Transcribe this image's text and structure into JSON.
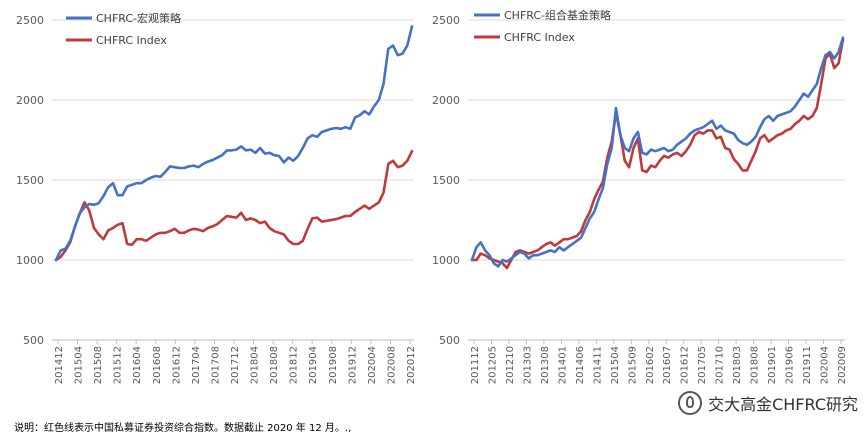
{
  "colors": {
    "blue": "#4472C4",
    "red": "#C0393B",
    "grid": "#D9D9D9",
    "axis": "#BFBFBF"
  },
  "chart_data": [
    {
      "type": "line",
      "ylim": [
        500,
        2500
      ],
      "yticks": [
        "500",
        "1000",
        "1500",
        "2000",
        "2500"
      ],
      "x_labels": [
        "201412",
        "201504",
        "201508",
        "201512",
        "201604",
        "201608",
        "201612",
        "201704",
        "201708",
        "201712",
        "201804",
        "201808",
        "201812",
        "201904",
        "201908",
        "201912",
        "202004",
        "202008",
        "202012"
      ],
      "legend_position": "top-left",
      "series": [
        {
          "name": "CHFRC-宏观策略",
          "color": "#4472C4",
          "values": [
            1000,
            1060,
            1070,
            1120,
            1210,
            1290,
            1330,
            1350,
            1345,
            1355,
            1400,
            1455,
            1480,
            1405,
            1405,
            1460,
            1470,
            1480,
            1480,
            1500,
            1515,
            1525,
            1520,
            1550,
            1585,
            1580,
            1575,
            1575,
            1585,
            1590,
            1580,
            1600,
            1615,
            1625,
            1640,
            1655,
            1685,
            1685,
            1690,
            1710,
            1685,
            1690,
            1670,
            1700,
            1665,
            1670,
            1655,
            1650,
            1610,
            1640,
            1620,
            1650,
            1700,
            1760,
            1780,
            1770,
            1800,
            1810,
            1820,
            1825,
            1820,
            1830,
            1820,
            1890,
            1905,
            1930,
            1910,
            1960,
            2000,
            2100,
            2320,
            2340,
            2280,
            2290,
            2340,
            2460
          ]
        },
        {
          "name": "CHFRC Index",
          "color": "#C0393B",
          "values": [
            1000,
            1020,
            1060,
            1110,
            1210,
            1290,
            1360,
            1310,
            1200,
            1160,
            1130,
            1185,
            1200,
            1220,
            1230,
            1100,
            1095,
            1130,
            1130,
            1120,
            1140,
            1160,
            1170,
            1170,
            1180,
            1195,
            1170,
            1170,
            1185,
            1195,
            1190,
            1180,
            1200,
            1210,
            1225,
            1250,
            1275,
            1270,
            1265,
            1295,
            1250,
            1260,
            1250,
            1230,
            1240,
            1200,
            1180,
            1170,
            1160,
            1120,
            1100,
            1100,
            1120,
            1195,
            1260,
            1265,
            1240,
            1245,
            1250,
            1255,
            1265,
            1275,
            1275,
            1300,
            1320,
            1340,
            1320,
            1340,
            1360,
            1420,
            1600,
            1620,
            1580,
            1590,
            1620,
            1680
          ]
        }
      ]
    },
    {
      "type": "line",
      "ylim": [
        500,
        2500
      ],
      "yticks": [
        "500",
        "1000",
        "1500",
        "2000",
        "2500"
      ],
      "x_labels": [
        "201112",
        "201205",
        "201210",
        "201303",
        "201308",
        "201401",
        "201406",
        "201411",
        "201504",
        "201509",
        "201602",
        "201607",
        "201612",
        "201705",
        "201710",
        "201803",
        "201808",
        "201901",
        "201906",
        "201911",
        "202004",
        "202009"
      ],
      "legend_position": "top-left",
      "series": [
        {
          "name": "CHFRC-组合基金策略",
          "color": "#4472C4",
          "values": [
            1000,
            1080,
            1110,
            1060,
            1030,
            980,
            960,
            1000,
            990,
            1010,
            1030,
            1050,
            1040,
            1010,
            1030,
            1030,
            1040,
            1050,
            1060,
            1050,
            1080,
            1060,
            1080,
            1100,
            1120,
            1140,
            1200,
            1260,
            1300,
            1380,
            1450,
            1600,
            1700,
            1950,
            1780,
            1700,
            1680,
            1760,
            1800,
            1670,
            1660,
            1690,
            1680,
            1690,
            1700,
            1680,
            1690,
            1720,
            1740,
            1760,
            1790,
            1810,
            1820,
            1830,
            1850,
            1870,
            1820,
            1840,
            1810,
            1800,
            1790,
            1750,
            1730,
            1720,
            1740,
            1770,
            1830,
            1880,
            1900,
            1870,
            1900,
            1910,
            1920,
            1930,
            1960,
            2000,
            2040,
            2020,
            2060,
            2100,
            2200,
            2280,
            2300,
            2260,
            2300,
            2390
          ]
        },
        {
          "name": "CHFRC Index",
          "color": "#C0393B",
          "values": [
            1000,
            1000,
            1040,
            1030,
            1010,
            1000,
            990,
            980,
            950,
            1000,
            1050,
            1060,
            1050,
            1040,
            1050,
            1060,
            1080,
            1100,
            1110,
            1090,
            1110,
            1130,
            1130,
            1140,
            1150,
            1180,
            1250,
            1300,
            1380,
            1440,
            1490,
            1640,
            1740,
            1920,
            1780,
            1620,
            1580,
            1700,
            1760,
            1560,
            1550,
            1590,
            1580,
            1620,
            1650,
            1640,
            1660,
            1670,
            1650,
            1680,
            1720,
            1780,
            1800,
            1790,
            1810,
            1810,
            1760,
            1770,
            1700,
            1690,
            1630,
            1600,
            1560,
            1560,
            1620,
            1680,
            1760,
            1780,
            1740,
            1760,
            1780,
            1790,
            1810,
            1820,
            1850,
            1870,
            1900,
            1880,
            1900,
            1950,
            2100,
            2260,
            2290,
            2200,
            2230,
            2380
          ]
        }
      ]
    }
  ],
  "footnote": "说明：红色线表示中国私募证券投资综合指数。数据截止 2020 年 12 月。.,",
  "watermark": {
    "text": "交大高金CHFRC研究",
    "icon": "wechat-icon"
  }
}
